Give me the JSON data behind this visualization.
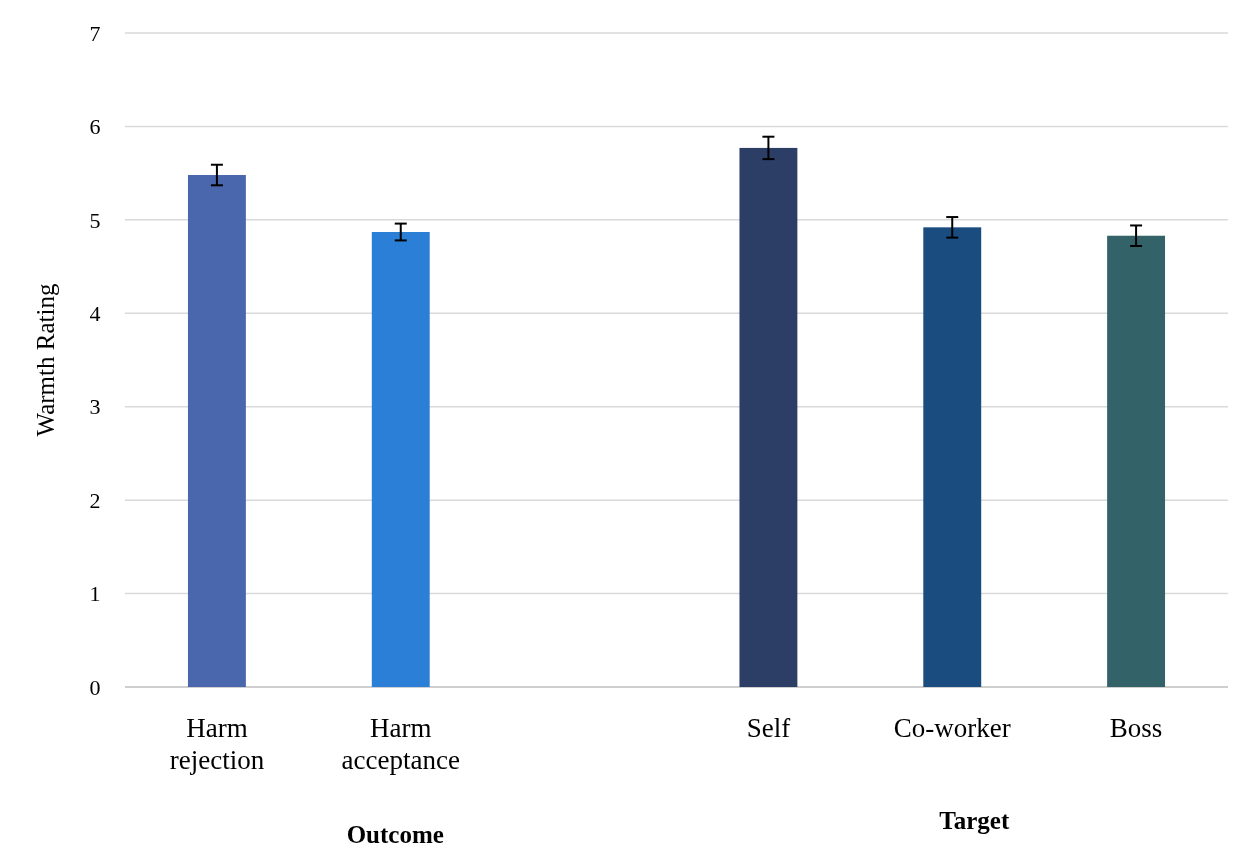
{
  "chart_data": {
    "type": "bar",
    "ylabel": "Warmth Rating",
    "categories": [
      "Harm\nrejection",
      "Harm\nacceptance",
      null,
      "Self",
      "Co-worker",
      "Boss"
    ],
    "values": [
      5.48,
      4.87,
      null,
      5.77,
      4.92,
      4.83
    ],
    "errors": [
      0.11,
      0.09,
      null,
      0.12,
      0.11,
      0.11
    ],
    "colors": [
      "#4a66ad",
      "#2b7fd6",
      null,
      "#2c3d66",
      "#1b4c80",
      "#336369"
    ],
    "ylim": [
      0,
      7
    ],
    "yticks": [
      0,
      1,
      2,
      3,
      4,
      5,
      6,
      7
    ],
    "grid": "y",
    "annotations": [
      "Outcome",
      "Target"
    ]
  }
}
